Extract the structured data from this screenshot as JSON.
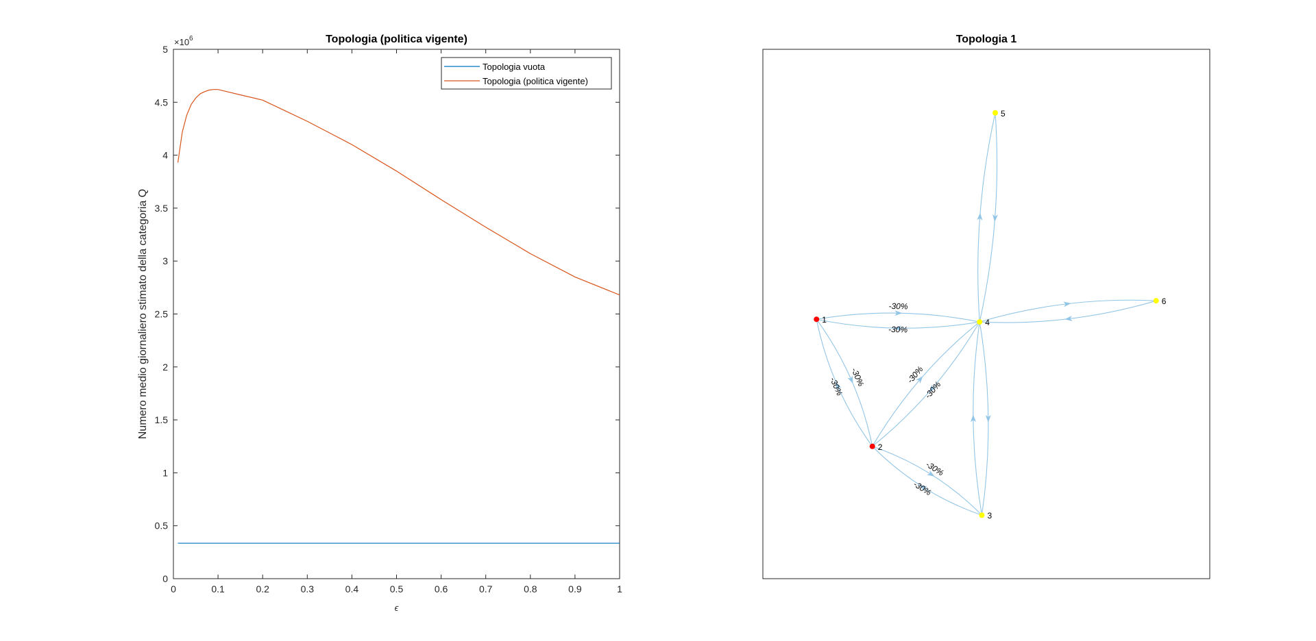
{
  "chart_data": [
    {
      "type": "line",
      "title": "Topologia (politica vigente)",
      "xlabel": "ϵ",
      "ylabel": "Numero medio giornaliero stimato della categoria Q",
      "xlim": [
        0,
        1
      ],
      "ylim": [
        0,
        5000000
      ],
      "xticks": [
        "0",
        "0.1",
        "0.2",
        "0.3",
        "0.4",
        "0.5",
        "0.6",
        "0.7",
        "0.8",
        "0.9",
        "1"
      ],
      "yticks": [
        "0",
        "0.5",
        "1",
        "1.5",
        "2",
        "2.5",
        "3",
        "3.5",
        "4",
        "4.5",
        "5"
      ],
      "y_exponent_base": "×10",
      "y_exponent_power": "6",
      "legend_position": "top-right",
      "grid": false,
      "series": [
        {
          "name": "Topologia vuota",
          "color": "#0072BD",
          "x": [
            0.01,
            1.0
          ],
          "y": [
            335000,
            335000
          ]
        },
        {
          "name": "Topologia (politica vigente)",
          "color": "#D95319",
          "x": [
            0.01,
            0.02,
            0.03,
            0.04,
            0.05,
            0.06,
            0.07,
            0.08,
            0.09,
            0.1,
            0.12,
            0.15,
            0.2,
            0.25,
            0.3,
            0.35,
            0.4,
            0.5,
            0.6,
            0.7,
            0.8,
            0.9,
            1.0
          ],
          "y": [
            3930000,
            4220000,
            4380000,
            4480000,
            4540000,
            4580000,
            4600000,
            4615000,
            4620000,
            4620000,
            4600000,
            4570000,
            4520000,
            4420000,
            4320000,
            4210000,
            4100000,
            3850000,
            3580000,
            3320000,
            3070000,
            2850000,
            2680000
          ]
        }
      ]
    },
    {
      "type": "graph",
      "title": "Topologia 1",
      "edge_color": "#92C5E6",
      "nodes": [
        {
          "id": "1",
          "color": "#FF0000",
          "pos": [
            0.12,
            0.49
          ]
        },
        {
          "id": "2",
          "color": "#FF0000",
          "pos": [
            0.245,
            0.25
          ]
        },
        {
          "id": "3",
          "color": "#FFFF00",
          "pos": [
            0.49,
            0.12
          ]
        },
        {
          "id": "4",
          "color": "#FFFF00",
          "pos": [
            0.485,
            0.485
          ]
        },
        {
          "id": "5",
          "color": "#FFFF00",
          "pos": [
            0.52,
            0.88
          ]
        },
        {
          "id": "6",
          "color": "#FFFF00",
          "pos": [
            0.88,
            0.525
          ]
        }
      ],
      "edges": [
        {
          "from": "1",
          "to": "4",
          "label": "-30%"
        },
        {
          "from": "4",
          "to": "1",
          "label": "-30%"
        },
        {
          "from": "1",
          "to": "2",
          "label": "-30%"
        },
        {
          "from": "2",
          "to": "1",
          "label": "-30%"
        },
        {
          "from": "2",
          "to": "4",
          "label": "-30%"
        },
        {
          "from": "4",
          "to": "2",
          "label": "-30%"
        },
        {
          "from": "2",
          "to": "3",
          "label": "-30%"
        },
        {
          "from": "3",
          "to": "2",
          "label": "-30%"
        },
        {
          "from": "4",
          "to": "5",
          "label": ""
        },
        {
          "from": "5",
          "to": "4",
          "label": ""
        },
        {
          "from": "4",
          "to": "6",
          "label": ""
        },
        {
          "from": "6",
          "to": "4",
          "label": ""
        },
        {
          "from": "4",
          "to": "3",
          "label": ""
        },
        {
          "from": "3",
          "to": "4",
          "label": ""
        }
      ]
    }
  ]
}
